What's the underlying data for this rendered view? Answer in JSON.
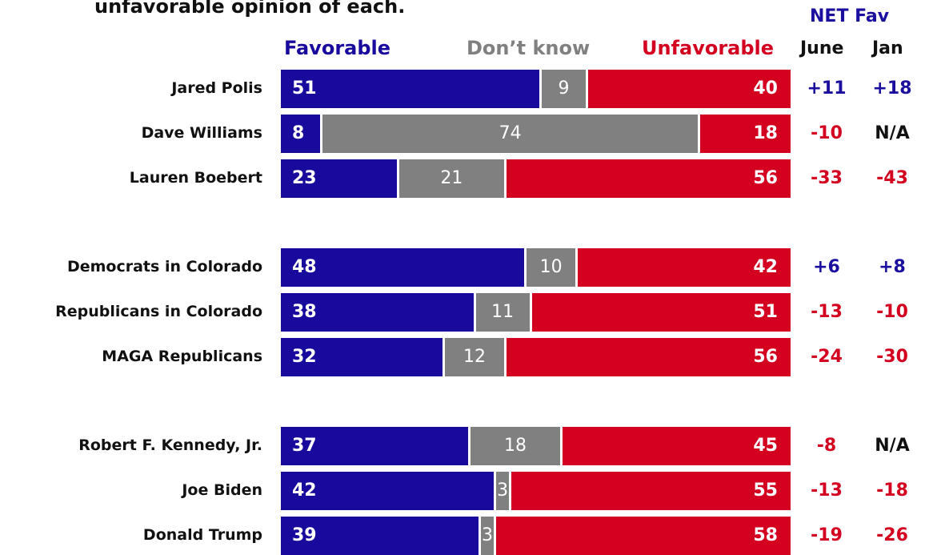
{
  "title": "unfavorable opinion of each.",
  "headers": {
    "favorable": "Favorable",
    "dont_know": "Don’t know",
    "unfavorable": "Unfavorable",
    "net_fav": "NET Fav",
    "june": "June",
    "jan": "Jan"
  },
  "colors": {
    "favorable": "#170a9c",
    "dont_know": "#808080",
    "unfavorable": "#d4001f",
    "net_positive": "#1a0f9e",
    "net_negative": "#d4001f",
    "net_neutral": "#111111"
  },
  "chart_data": {
    "type": "bar",
    "stacked": true,
    "orientation": "horizontal",
    "categories": [
      "Jared Polis",
      "Dave Williams",
      "Lauren Boebert",
      "Democrats in Colorado",
      "Republicans in Colorado",
      "MAGA Republicans",
      "Robert F. Kennedy, Jr.",
      "Joe Biden",
      "Donald Trump"
    ],
    "series": [
      {
        "name": "Favorable",
        "values": [
          51,
          8,
          23,
          48,
          38,
          32,
          37,
          42,
          39
        ]
      },
      {
        "name": "Don’t know",
        "values": [
          9,
          74,
          21,
          10,
          11,
          12,
          18,
          3,
          3
        ]
      },
      {
        "name": "Unfavorable",
        "values": [
          40,
          18,
          56,
          42,
          51,
          56,
          45,
          55,
          58
        ]
      }
    ],
    "net_fav": {
      "june": [
        "+11",
        "-10",
        "-33",
        "+6",
        "-13",
        "-24",
        "-8",
        "-13",
        "-19"
      ],
      "jan": [
        "+18",
        "N/A",
        "-43",
        "+8",
        "-10",
        "-30",
        "N/A",
        "-18",
        "-26"
      ]
    },
    "groups": [
      3,
      3,
      3
    ],
    "xlim": [
      0,
      100
    ],
    "legend": "top"
  }
}
